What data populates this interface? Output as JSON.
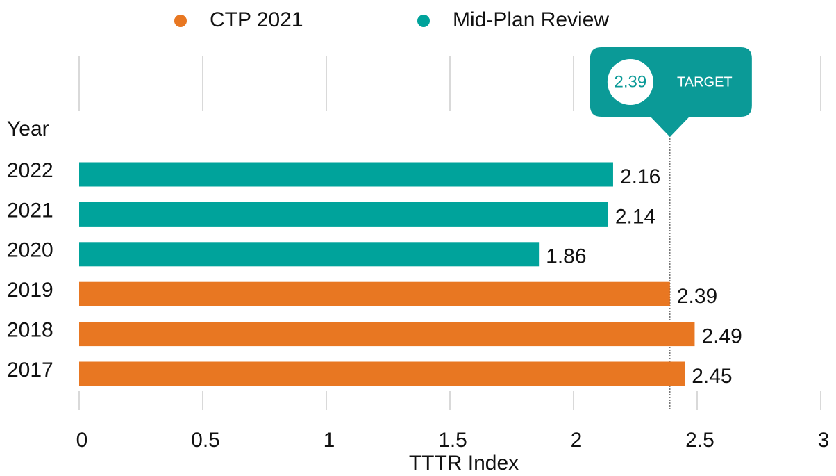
{
  "chart_data": {
    "type": "bar",
    "orientation": "horizontal",
    "categories": [
      "2022",
      "2021",
      "2020",
      "2019",
      "2018",
      "2017"
    ],
    "series": [
      {
        "name": "CTP 2021",
        "color": "#e87722",
        "values": [
          null,
          null,
          null,
          2.39,
          2.49,
          2.45
        ]
      },
      {
        "name": "Mid-Plan Review",
        "color": "#00a39b",
        "values": [
          2.16,
          2.14,
          1.86,
          null,
          null,
          null
        ]
      }
    ],
    "y_label": "Year",
    "x_label": "TTTR Index",
    "xlim": [
      0,
      3
    ],
    "xticks": [
      0,
      0.5,
      1,
      1.5,
      2,
      2.5,
      3
    ],
    "grid": true,
    "target": {
      "value": 2.39,
      "label": "TARGET",
      "color": "#0b9a97"
    }
  }
}
